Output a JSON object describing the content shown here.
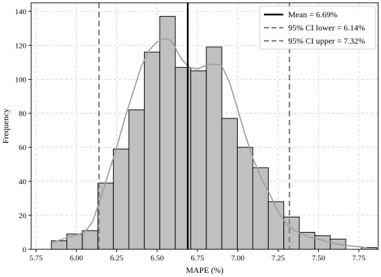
{
  "chart_data": {
    "type": "bar",
    "title": "",
    "xlabel": "MAPE (%)",
    "ylabel": "Frequency",
    "xlim": [
      5.72,
      7.87
    ],
    "ylim": [
      0,
      145
    ],
    "xticks": [
      "5.75",
      "6.00",
      "6.25",
      "6.50",
      "6.75",
      "7.00",
      "7.25",
      "7.50",
      "7.75"
    ],
    "yticks": [
      "0",
      "20",
      "40",
      "60",
      "80",
      "100",
      "120",
      "140"
    ],
    "grid": true,
    "legend_position": "top-right",
    "bins": [
      {
        "x0": 5.845,
        "x1": 5.941,
        "count": 5
      },
      {
        "x0": 5.941,
        "x1": 6.037,
        "count": 9
      },
      {
        "x0": 6.037,
        "x1": 6.133,
        "count": 11
      },
      {
        "x0": 6.133,
        "x1": 6.229,
        "count": 39
      },
      {
        "x0": 6.229,
        "x1": 6.325,
        "count": 59
      },
      {
        "x0": 6.325,
        "x1": 6.421,
        "count": 82
      },
      {
        "x0": 6.421,
        "x1": 6.517,
        "count": 116
      },
      {
        "x0": 6.517,
        "x1": 6.613,
        "count": 137
      },
      {
        "x0": 6.613,
        "x1": 6.709,
        "count": 107
      },
      {
        "x0": 6.709,
        "x1": 6.805,
        "count": 105
      },
      {
        "x0": 6.805,
        "x1": 6.901,
        "count": 119
      },
      {
        "x0": 6.901,
        "x1": 6.997,
        "count": 77
      },
      {
        "x0": 6.997,
        "x1": 7.093,
        "count": 60
      },
      {
        "x0": 7.093,
        "x1": 7.189,
        "count": 48
      },
      {
        "x0": 7.189,
        "x1": 7.285,
        "count": 28
      },
      {
        "x0": 7.285,
        "x1": 7.381,
        "count": 19
      },
      {
        "x0": 7.381,
        "x1": 7.477,
        "count": 10
      },
      {
        "x0": 7.477,
        "x1": 7.573,
        "count": 8
      },
      {
        "x0": 7.573,
        "x1": 7.669,
        "count": 6
      },
      {
        "x0": 7.669,
        "x1": 7.765,
        "count": 0
      },
      {
        "x0": 7.765,
        "x1": 7.861,
        "count": 1
      }
    ],
    "kde": {
      "x": [
        5.85,
        5.9,
        5.95,
        6.0,
        6.05,
        6.1,
        6.15,
        6.2,
        6.25,
        6.3,
        6.35,
        6.4,
        6.45,
        6.5,
        6.55,
        6.58,
        6.6,
        6.65,
        6.7,
        6.75,
        6.8,
        6.85,
        6.9,
        6.95,
        7.0,
        7.05,
        7.1,
        7.15,
        7.2,
        7.25,
        7.3,
        7.35,
        7.4,
        7.45,
        7.5,
        7.55,
        7.6,
        7.65,
        7.7,
        7.75,
        7.8
      ],
      "y": [
        4,
        5.5,
        7,
        8.5,
        10,
        16,
        30,
        45,
        60,
        77,
        92,
        107,
        117,
        122,
        124,
        123,
        121,
        112,
        107,
        106,
        108,
        109,
        108,
        98,
        82,
        66,
        52,
        41,
        32,
        22,
        15,
        11,
        9,
        7,
        6,
        4.5,
        3.5,
        2.5,
        2,
        1.5,
        1
      ]
    },
    "reference_lines": [
      {
        "name": "Mean = 6.69%",
        "x": 6.69,
        "style": "solid",
        "color": "#000000"
      },
      {
        "name": "95% CI lower = 6.14%",
        "x": 6.14,
        "style": "dashed",
        "color": "#808080"
      },
      {
        "name": "95% CI upper = 7.32%",
        "x": 7.32,
        "style": "dashed",
        "color": "#808080"
      }
    ],
    "colors": {
      "bar_fill": "#c0c0c0",
      "bar_edge": "#000000",
      "kde_line": "#a0a0a0",
      "grid": "#cccccc"
    }
  }
}
